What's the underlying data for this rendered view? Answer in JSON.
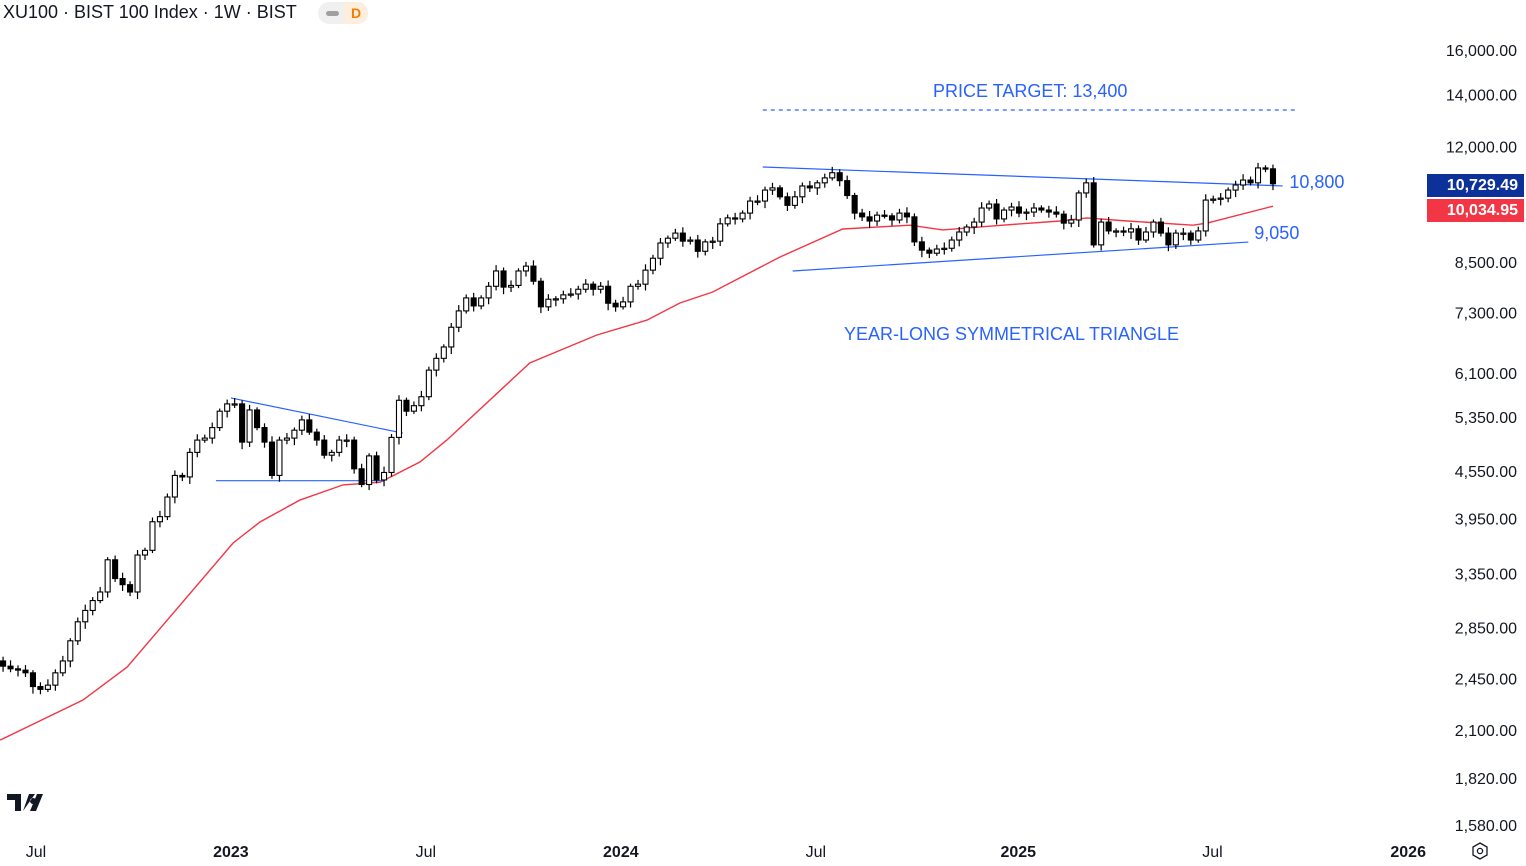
{
  "header": {
    "title": "XU100 · BIST 100 Index · 1W · BIST",
    "interval_badge": "D"
  },
  "colors": {
    "ma": "#f23645",
    "trendline": "#2962ff",
    "annotation": "#2962ff",
    "last_price_bg": "#0c3299",
    "ma_badge_bg": "#f23645"
  },
  "badges": {
    "last_price": "10,729.49",
    "ma_value": "10,034.95"
  },
  "chart_data": {
    "type": "candlestick",
    "scale": "log",
    "ylim": [
      1500,
      17500
    ],
    "y_ticks": [
      {
        "value": 16000,
        "label": "16,000.00"
      },
      {
        "value": 14000,
        "label": "14,000.00"
      },
      {
        "value": 12000,
        "label": "12,000.00"
      },
      {
        "value": 8500,
        "label": "8,500.00"
      },
      {
        "value": 7300,
        "label": "7,300.00"
      },
      {
        "value": 6100,
        "label": "6,100.00"
      },
      {
        "value": 5350,
        "label": "5,350.00"
      },
      {
        "value": 4550,
        "label": "4,550.00"
      },
      {
        "value": 3950,
        "label": "3,950.00"
      },
      {
        "value": 3350,
        "label": "3,350.00"
      },
      {
        "value": 2850,
        "label": "2,850.00"
      },
      {
        "value": 2450,
        "label": "2,450.00"
      },
      {
        "value": 2100,
        "label": "2,100.00"
      },
      {
        "value": 1820,
        "label": "1,820.00"
      },
      {
        "value": 1580,
        "label": "1,580.00"
      }
    ],
    "x_ticks": [
      {
        "week": 5.4,
        "label": "Jul",
        "bold": false
      },
      {
        "week": 31.5,
        "label": "2023",
        "bold": true
      },
      {
        "week": 57.6,
        "label": "Jul",
        "bold": false
      },
      {
        "week": 83.7,
        "label": "2024",
        "bold": true
      },
      {
        "week": 109.8,
        "label": "Jul",
        "bold": false
      },
      {
        "week": 136.9,
        "label": "2025",
        "bold": true
      },
      {
        "week": 162.9,
        "label": "Jul",
        "bold": false
      },
      {
        "week": 189.1,
        "label": "2026",
        "bold": true
      }
    ],
    "first_open": 2620,
    "closes": [
      2580,
      2540,
      2520,
      2510,
      2490,
      2390,
      2370,
      2400,
      2490,
      2580,
      2740,
      2900,
      3000,
      3090,
      3170,
      3490,
      3300,
      3240,
      3170,
      3540,
      3590,
      3910,
      3970,
      4210,
      4490,
      4470,
      4810,
      4990,
      5020,
      5180,
      5440,
      5560,
      5560,
      4960,
      5460,
      5180,
      4960,
      4490,
      4990,
      5020,
      5140,
      5300,
      5110,
      4990,
      4770,
      4810,
      4990,
      4990,
      4580,
      4370,
      4760,
      4430,
      4530,
      5030,
      5620,
      5440,
      5530,
      5680,
      6150,
      6370,
      6590,
      6990,
      7340,
      7630,
      7450,
      7630,
      7900,
      8270,
      7880,
      7920,
      8270,
      8390,
      8020,
      7430,
      7600,
      7610,
      7700,
      7720,
      7830,
      7950,
      7830,
      7900,
      7510,
      7430,
      7540,
      7900,
      7950,
      8290,
      8590,
      8990,
      9120,
      9260,
      9040,
      9070,
      8770,
      9020,
      9040,
      9520,
      9690,
      9660,
      9830,
      10190,
      10190,
      10530,
      10600,
      10320,
      10060,
      10320,
      10660,
      10600,
      10760,
      10920,
      11090,
      10830,
      10360,
      9830,
      9720,
      9600,
      9770,
      9750,
      9630,
      9830,
      9720,
      9020,
      8800,
      8720,
      8830,
      8850,
      9070,
      9290,
      9430,
      9570,
      9980,
      10100,
      9660,
      9920,
      10010,
      9830,
      9860,
      9980,
      9920,
      9860,
      9800,
      9540,
      9630,
      10440,
      10760,
      8940,
      9570,
      9320,
      9320,
      9290,
      9380,
      9070,
      9290,
      9570,
      9260,
      8940,
      9260,
      9260,
      9070,
      9320,
      10220,
      10250,
      10280,
      10530,
      10690,
      10850,
      10760,
      11250,
      11220,
      10729.49
    ],
    "moving_average": {
      "points": [
        [
          0.6,
          2037
        ],
        [
          11.7,
          2296
        ],
        [
          17.6,
          2533
        ],
        [
          31.8,
          3670
        ],
        [
          35.4,
          3907
        ],
        [
          40.7,
          4170
        ],
        [
          46.5,
          4365
        ],
        [
          51.5,
          4400
        ],
        [
          56.8,
          4674
        ],
        [
          60.4,
          4990
        ],
        [
          71.5,
          6282
        ],
        [
          80.5,
          6830
        ],
        [
          87.2,
          7140
        ],
        [
          91.6,
          7515
        ],
        [
          96,
          7766
        ],
        [
          105,
          8622
        ],
        [
          113.4,
          9374
        ],
        [
          122.4,
          9480
        ],
        [
          126.8,
          9350
        ],
        [
          133.5,
          9460
        ],
        [
          142.5,
          9600
        ],
        [
          146.1,
          9690
        ],
        [
          151.5,
          9600
        ],
        [
          160.3,
          9480
        ],
        [
          162.2,
          9540
        ],
        [
          171,
          10034.95
        ]
      ]
    },
    "trendlines": [
      {
        "name": "triangle-2023-upper",
        "from": [
          31.5,
          5660
        ],
        "to": [
          54.5,
          5096
        ],
        "dashed": false
      },
      {
        "name": "triangle-2023-lower",
        "from": [
          29.5,
          4420
        ],
        "to": [
          52.1,
          4420
        ],
        "dashed": false
      },
      {
        "name": "triangle-upper",
        "from": [
          102.7,
          11280
        ],
        "to": [
          172.3,
          10660
        ],
        "dashed": false
      },
      {
        "name": "triangle-lower",
        "from": [
          106.7,
          8269
        ],
        "to": [
          167.7,
          9016
        ],
        "dashed": false
      },
      {
        "name": "price-target",
        "from": [
          102.7,
          13375
        ],
        "to": [
          174.2,
          13375
        ],
        "dashed": true
      }
    ],
    "annotations": [
      {
        "text": "PRICE TARGET: 13,400",
        "week": 138.5,
        "price": 13900,
        "anchor": "middle"
      },
      {
        "text": "10,800",
        "week": 173.2,
        "price": 10600,
        "anchor": "start"
      },
      {
        "text": "9,050",
        "week": 168.5,
        "price": 9100,
        "anchor": "start"
      },
      {
        "text": "YEAR-LONG SYMMETRICAL TRIANGLE",
        "week": 136,
        "price": 6730,
        "anchor": "middle"
      }
    ]
  }
}
